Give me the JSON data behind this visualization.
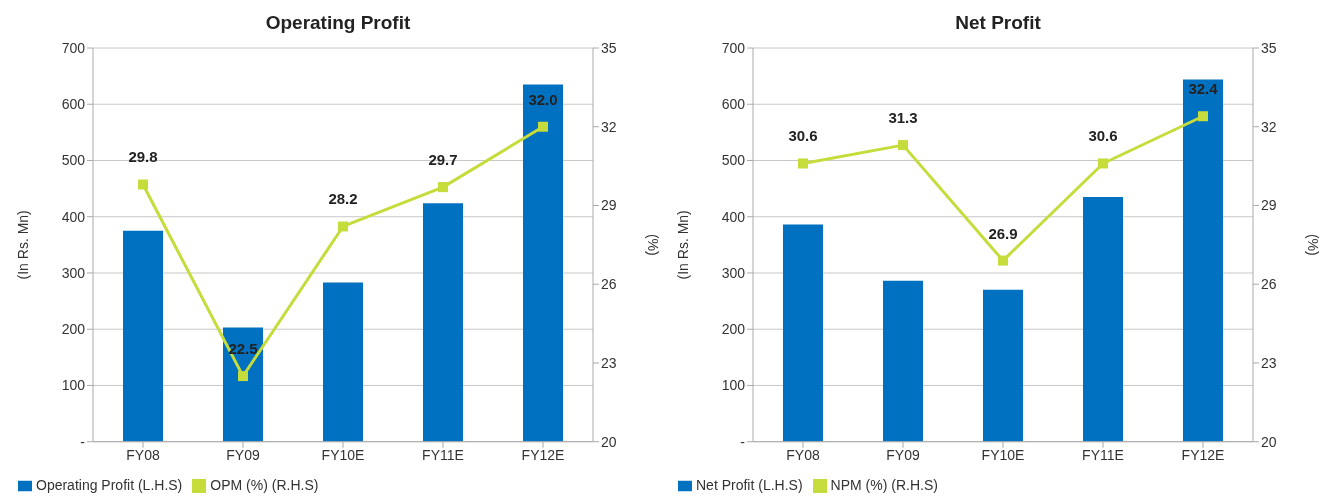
{
  "chart_data": [
    {
      "type": "bar",
      "title": "Operating Profit",
      "categories": [
        "FY08",
        "FY09",
        "FY10E",
        "FY11E",
        "FY12E"
      ],
      "ylabel": "(In Rs. Mn)",
      "y2label": "(%)",
      "ylim": [
        0,
        700
      ],
      "yticks": [
        {
          "value": 0,
          "label": "-"
        },
        100,
        200,
        300,
        400,
        500,
        600,
        700
      ],
      "y2lim": [
        20,
        35
      ],
      "y2ticks": [
        20,
        23,
        26,
        29,
        32,
        35
      ],
      "grid": "y",
      "legend": "bottom",
      "marker": "square",
      "series": [
        {
          "name": "Operating Profit (L.H.S)",
          "color": "#0070c0",
          "values": [
            375,
            203,
            283,
            424,
            635
          ]
        },
        {
          "name": "OPM (%) (R.H.S)",
          "type": "line",
          "axis": "y2",
          "color": "#c5dc3a",
          "values": [
            29.8,
            22.5,
            28.2,
            29.7,
            32.0
          ],
          "value_labels": [
            "29.8",
            "22.5",
            "28.2",
            "29.7",
            "32.0"
          ]
        }
      ]
    },
    {
      "type": "bar",
      "title": "Net Profit",
      "categories": [
        "FY08",
        "FY09",
        "FY10E",
        "FY11E",
        "FY12E"
      ],
      "ylabel": "(In Rs. Mn)",
      "y2label": "(%)",
      "ylim": [
        0,
        700
      ],
      "yticks": [
        {
          "value": 0,
          "label": "-"
        },
        100,
        200,
        300,
        400,
        500,
        600,
        700
      ],
      "y2lim": [
        20,
        35
      ],
      "y2ticks": [
        20,
        23,
        26,
        29,
        32,
        35
      ],
      "grid": "y",
      "legend": "bottom",
      "marker": "square",
      "series": [
        {
          "name": "Net Profit (L.H.S)",
          "color": "#0070c0",
          "values": [
            386,
            286,
            270,
            435,
            644
          ]
        },
        {
          "name": "NPM (%) (R.H.S)",
          "type": "line",
          "axis": "y2",
          "color": "#c5dc3a",
          "values": [
            30.6,
            31.3,
            26.9,
            30.6,
            32.4
          ],
          "value_labels": [
            "30.6",
            "31.3",
            "26.9",
            "30.6",
            "32.4"
          ]
        }
      ]
    }
  ]
}
